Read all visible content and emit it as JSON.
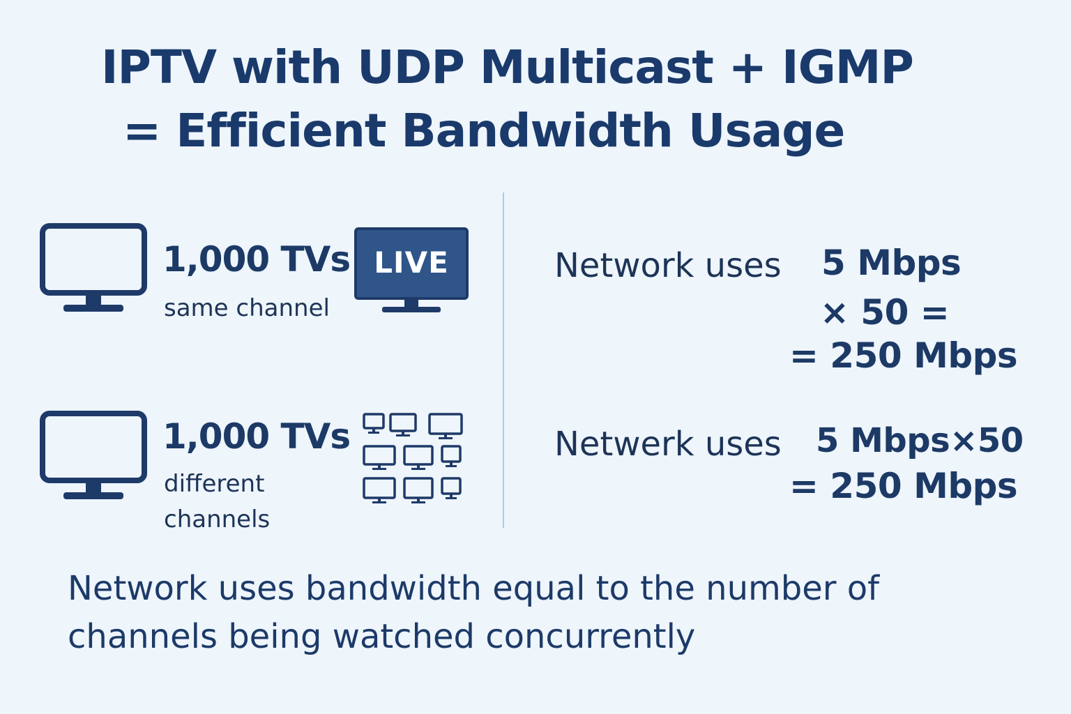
{
  "title": {
    "line1": "IPTV with UDP Multicast + IGMP",
    "line2": "= Efficient Bandwidth Usage"
  },
  "rows": [
    {
      "count": "1,000 TVs",
      "subtitle": [
        "same channel"
      ],
      "badge": "LIVE",
      "network_label": "Network uses",
      "calc": [
        "5 Mbps",
        "× 50 =",
        "= 250 Mbps"
      ]
    },
    {
      "count": "1,000 TVs",
      "subtitle": [
        "different",
        "channels"
      ],
      "network_label": "Netwerk uses",
      "calc": [
        "5 Mbps×50",
        "= 250 Mbps"
      ]
    }
  ],
  "footer": {
    "line1": "Network uses bandwidth equal to the number of",
    "line2": "channels being watched concurrently"
  },
  "colors": {
    "background": "#eef5fb",
    "text": "#1d3a66",
    "icon": "#1e3a68",
    "live_screen": "#2f5589",
    "divider": "#a9cbe5"
  },
  "icons": {
    "tv": "tv-monitor-icon",
    "live": "live-tv-icon",
    "grid": "tv-grid-icon"
  }
}
